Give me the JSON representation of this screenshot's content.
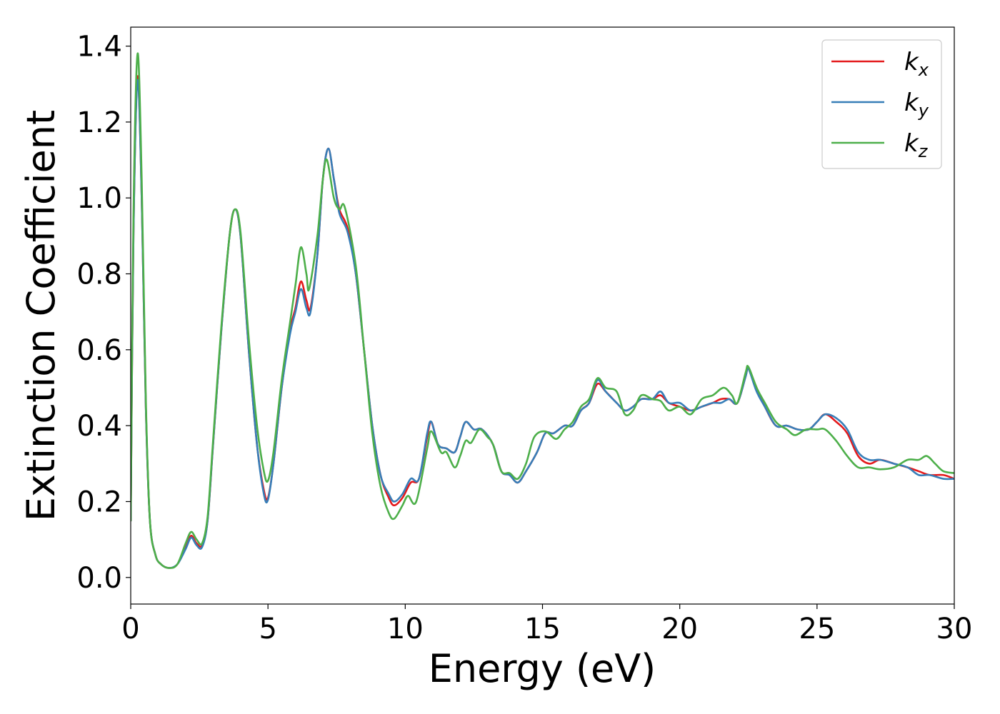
{
  "chart_data": {
    "type": "line",
    "xlabel": "Energy (eV)",
    "ylabel": "Extinction Coefficient",
    "xlim": [
      0,
      30
    ],
    "ylim": [
      -0.07,
      1.45
    ],
    "xticks": [
      0,
      5,
      10,
      15,
      20,
      25,
      30
    ],
    "xtick_labels": [
      "0",
      "5",
      "10",
      "15",
      "20",
      "25",
      "30"
    ],
    "yticks": [
      0.0,
      0.2,
      0.4,
      0.6,
      0.8,
      1.0,
      1.2,
      1.4
    ],
    "ytick_labels": [
      "0.0",
      "0.2",
      "0.4",
      "0.6",
      "0.8",
      "1.0",
      "1.2",
      "1.4"
    ],
    "grid": false,
    "legend_position": "top-right",
    "series": [
      {
        "name": "k_x",
        "label_base": "k",
        "label_sub": "x",
        "color": "#e41a1c",
        "points": [
          [
            0.0,
            0.15
          ],
          [
            0.1,
            0.9
          ],
          [
            0.25,
            1.32
          ],
          [
            0.4,
            1.0
          ],
          [
            0.55,
            0.45
          ],
          [
            0.7,
            0.15
          ],
          [
            0.9,
            0.06
          ],
          [
            1.1,
            0.035
          ],
          [
            1.4,
            0.025
          ],
          [
            1.7,
            0.035
          ],
          [
            2.0,
            0.08
          ],
          [
            2.2,
            0.11
          ],
          [
            2.4,
            0.09
          ],
          [
            2.6,
            0.085
          ],
          [
            2.8,
            0.15
          ],
          [
            3.0,
            0.35
          ],
          [
            3.3,
            0.65
          ],
          [
            3.6,
            0.9
          ],
          [
            3.8,
            0.97
          ],
          [
            4.0,
            0.9
          ],
          [
            4.3,
            0.6
          ],
          [
            4.6,
            0.35
          ],
          [
            4.85,
            0.23
          ],
          [
            5.0,
            0.21
          ],
          [
            5.2,
            0.3
          ],
          [
            5.5,
            0.5
          ],
          [
            5.8,
            0.65
          ],
          [
            6.0,
            0.71
          ],
          [
            6.2,
            0.78
          ],
          [
            6.4,
            0.73
          ],
          [
            6.55,
            0.71
          ],
          [
            6.8,
            0.85
          ],
          [
            7.0,
            1.05
          ],
          [
            7.2,
            1.13
          ],
          [
            7.4,
            1.05
          ],
          [
            7.6,
            0.97
          ],
          [
            7.9,
            0.92
          ],
          [
            8.2,
            0.8
          ],
          [
            8.5,
            0.6
          ],
          [
            8.8,
            0.4
          ],
          [
            9.1,
            0.27
          ],
          [
            9.4,
            0.21
          ],
          [
            9.6,
            0.19
          ],
          [
            9.9,
            0.21
          ],
          [
            10.2,
            0.25
          ],
          [
            10.5,
            0.26
          ],
          [
            10.8,
            0.37
          ],
          [
            10.95,
            0.41
          ],
          [
            11.2,
            0.35
          ],
          [
            11.5,
            0.34
          ],
          [
            11.8,
            0.33
          ],
          [
            12.0,
            0.37
          ],
          [
            12.2,
            0.41
          ],
          [
            12.5,
            0.39
          ],
          [
            12.8,
            0.39
          ],
          [
            13.2,
            0.35
          ],
          [
            13.5,
            0.28
          ],
          [
            13.8,
            0.27
          ],
          [
            14.1,
            0.25
          ],
          [
            14.4,
            0.28
          ],
          [
            14.8,
            0.33
          ],
          [
            15.1,
            0.38
          ],
          [
            15.4,
            0.38
          ],
          [
            15.8,
            0.4
          ],
          [
            16.1,
            0.4
          ],
          [
            16.4,
            0.44
          ],
          [
            16.7,
            0.46
          ],
          [
            17.0,
            0.51
          ],
          [
            17.3,
            0.49
          ],
          [
            17.7,
            0.46
          ],
          [
            18.0,
            0.44
          ],
          [
            18.3,
            0.45
          ],
          [
            18.6,
            0.47
          ],
          [
            19.0,
            0.47
          ],
          [
            19.3,
            0.48
          ],
          [
            19.6,
            0.46
          ],
          [
            20.0,
            0.45
          ],
          [
            20.4,
            0.44
          ],
          [
            20.8,
            0.45
          ],
          [
            21.2,
            0.46
          ],
          [
            21.5,
            0.47
          ],
          [
            21.8,
            0.47
          ],
          [
            22.1,
            0.46
          ],
          [
            22.4,
            0.53
          ],
          [
            22.5,
            0.55
          ],
          [
            22.8,
            0.5
          ],
          [
            23.1,
            0.45
          ],
          [
            23.5,
            0.4
          ],
          [
            23.9,
            0.4
          ],
          [
            24.3,
            0.39
          ],
          [
            24.7,
            0.39
          ],
          [
            25.0,
            0.41
          ],
          [
            25.3,
            0.43
          ],
          [
            25.7,
            0.41
          ],
          [
            26.1,
            0.38
          ],
          [
            26.5,
            0.32
          ],
          [
            26.9,
            0.3
          ],
          [
            27.3,
            0.31
          ],
          [
            27.8,
            0.3
          ],
          [
            28.3,
            0.29
          ],
          [
            28.7,
            0.28
          ],
          [
            29.1,
            0.27
          ],
          [
            29.6,
            0.27
          ],
          [
            30.0,
            0.26
          ]
        ]
      },
      {
        "name": "k_y",
        "label_base": "k",
        "label_sub": "y",
        "color": "#377eb8",
        "points": [
          [
            0.0,
            0.15
          ],
          [
            0.1,
            0.9
          ],
          [
            0.25,
            1.31
          ],
          [
            0.4,
            1.0
          ],
          [
            0.55,
            0.45
          ],
          [
            0.7,
            0.15
          ],
          [
            0.9,
            0.06
          ],
          [
            1.1,
            0.035
          ],
          [
            1.4,
            0.025
          ],
          [
            1.7,
            0.035
          ],
          [
            2.0,
            0.075
          ],
          [
            2.2,
            0.105
          ],
          [
            2.4,
            0.085
          ],
          [
            2.6,
            0.08
          ],
          [
            2.8,
            0.15
          ],
          [
            3.0,
            0.35
          ],
          [
            3.3,
            0.65
          ],
          [
            3.6,
            0.9
          ],
          [
            3.8,
            0.97
          ],
          [
            4.0,
            0.9
          ],
          [
            4.3,
            0.6
          ],
          [
            4.6,
            0.35
          ],
          [
            4.85,
            0.22
          ],
          [
            5.0,
            0.205
          ],
          [
            5.2,
            0.3
          ],
          [
            5.5,
            0.5
          ],
          [
            5.8,
            0.64
          ],
          [
            6.0,
            0.7
          ],
          [
            6.2,
            0.76
          ],
          [
            6.4,
            0.71
          ],
          [
            6.55,
            0.7
          ],
          [
            6.8,
            0.85
          ],
          [
            7.0,
            1.05
          ],
          [
            7.2,
            1.13
          ],
          [
            7.4,
            1.05
          ],
          [
            7.6,
            0.96
          ],
          [
            7.9,
            0.91
          ],
          [
            8.2,
            0.8
          ],
          [
            8.5,
            0.6
          ],
          [
            8.8,
            0.4
          ],
          [
            9.1,
            0.27
          ],
          [
            9.4,
            0.22
          ],
          [
            9.6,
            0.2
          ],
          [
            9.9,
            0.22
          ],
          [
            10.2,
            0.26
          ],
          [
            10.5,
            0.26
          ],
          [
            10.8,
            0.38
          ],
          [
            10.95,
            0.41
          ],
          [
            11.2,
            0.35
          ],
          [
            11.5,
            0.34
          ],
          [
            11.8,
            0.33
          ],
          [
            12.0,
            0.37
          ],
          [
            12.2,
            0.41
          ],
          [
            12.5,
            0.39
          ],
          [
            12.8,
            0.39
          ],
          [
            13.2,
            0.35
          ],
          [
            13.5,
            0.28
          ],
          [
            13.8,
            0.27
          ],
          [
            14.1,
            0.25
          ],
          [
            14.4,
            0.28
          ],
          [
            14.8,
            0.33
          ],
          [
            15.1,
            0.38
          ],
          [
            15.4,
            0.38
          ],
          [
            15.8,
            0.4
          ],
          [
            16.1,
            0.4
          ],
          [
            16.4,
            0.44
          ],
          [
            16.7,
            0.46
          ],
          [
            17.0,
            0.52
          ],
          [
            17.3,
            0.49
          ],
          [
            17.7,
            0.46
          ],
          [
            18.0,
            0.44
          ],
          [
            18.3,
            0.45
          ],
          [
            18.6,
            0.47
          ],
          [
            19.0,
            0.47
          ],
          [
            19.3,
            0.49
          ],
          [
            19.6,
            0.46
          ],
          [
            20.0,
            0.46
          ],
          [
            20.4,
            0.44
          ],
          [
            20.8,
            0.45
          ],
          [
            21.2,
            0.46
          ],
          [
            21.5,
            0.46
          ],
          [
            21.8,
            0.47
          ],
          [
            22.1,
            0.46
          ],
          [
            22.4,
            0.53
          ],
          [
            22.5,
            0.55
          ],
          [
            22.8,
            0.49
          ],
          [
            23.1,
            0.45
          ],
          [
            23.5,
            0.4
          ],
          [
            23.9,
            0.4
          ],
          [
            24.3,
            0.39
          ],
          [
            24.7,
            0.39
          ],
          [
            25.0,
            0.41
          ],
          [
            25.3,
            0.43
          ],
          [
            25.7,
            0.42
          ],
          [
            26.1,
            0.39
          ],
          [
            26.5,
            0.33
          ],
          [
            26.9,
            0.31
          ],
          [
            27.3,
            0.31
          ],
          [
            27.8,
            0.3
          ],
          [
            28.3,
            0.29
          ],
          [
            28.7,
            0.27
          ],
          [
            29.1,
            0.27
          ],
          [
            29.6,
            0.26
          ],
          [
            30.0,
            0.26
          ]
        ]
      },
      {
        "name": "k_z",
        "label_base": "k",
        "label_sub": "z",
        "color": "#4daf4a",
        "points": [
          [
            0.0,
            0.15
          ],
          [
            0.1,
            0.95
          ],
          [
            0.25,
            1.38
          ],
          [
            0.4,
            1.05
          ],
          [
            0.55,
            0.47
          ],
          [
            0.7,
            0.15
          ],
          [
            0.9,
            0.06
          ],
          [
            1.1,
            0.035
          ],
          [
            1.4,
            0.025
          ],
          [
            1.7,
            0.035
          ],
          [
            2.0,
            0.09
          ],
          [
            2.2,
            0.12
          ],
          [
            2.4,
            0.1
          ],
          [
            2.6,
            0.09
          ],
          [
            2.8,
            0.16
          ],
          [
            3.0,
            0.36
          ],
          [
            3.3,
            0.66
          ],
          [
            3.6,
            0.9
          ],
          [
            3.8,
            0.97
          ],
          [
            4.0,
            0.91
          ],
          [
            4.3,
            0.63
          ],
          [
            4.6,
            0.4
          ],
          [
            4.85,
            0.28
          ],
          [
            5.0,
            0.255
          ],
          [
            5.2,
            0.33
          ],
          [
            5.5,
            0.52
          ],
          [
            5.8,
            0.67
          ],
          [
            6.0,
            0.77
          ],
          [
            6.2,
            0.87
          ],
          [
            6.4,
            0.8
          ],
          [
            6.5,
            0.76
          ],
          [
            6.8,
            0.9
          ],
          [
            7.0,
            1.05
          ],
          [
            7.15,
            1.1
          ],
          [
            7.4,
            1.0
          ],
          [
            7.6,
            0.97
          ],
          [
            7.8,
            0.975
          ],
          [
            8.2,
            0.82
          ],
          [
            8.5,
            0.6
          ],
          [
            8.8,
            0.38
          ],
          [
            9.1,
            0.24
          ],
          [
            9.4,
            0.17
          ],
          [
            9.6,
            0.155
          ],
          [
            9.9,
            0.19
          ],
          [
            10.1,
            0.215
          ],
          [
            10.4,
            0.2
          ],
          [
            10.8,
            0.34
          ],
          [
            10.95,
            0.385
          ],
          [
            11.3,
            0.33
          ],
          [
            11.5,
            0.33
          ],
          [
            11.8,
            0.29
          ],
          [
            12.0,
            0.32
          ],
          [
            12.2,
            0.36
          ],
          [
            12.4,
            0.355
          ],
          [
            12.7,
            0.39
          ],
          [
            13.0,
            0.37
          ],
          [
            13.2,
            0.35
          ],
          [
            13.5,
            0.28
          ],
          [
            13.8,
            0.275
          ],
          [
            14.1,
            0.26
          ],
          [
            14.4,
            0.3
          ],
          [
            14.7,
            0.37
          ],
          [
            15.1,
            0.385
          ],
          [
            15.5,
            0.365
          ],
          [
            15.8,
            0.39
          ],
          [
            16.1,
            0.41
          ],
          [
            16.4,
            0.45
          ],
          [
            16.7,
            0.47
          ],
          [
            17.0,
            0.525
          ],
          [
            17.3,
            0.5
          ],
          [
            17.7,
            0.49
          ],
          [
            18.0,
            0.43
          ],
          [
            18.3,
            0.44
          ],
          [
            18.6,
            0.48
          ],
          [
            19.0,
            0.47
          ],
          [
            19.3,
            0.465
          ],
          [
            19.6,
            0.44
          ],
          [
            20.0,
            0.45
          ],
          [
            20.4,
            0.43
          ],
          [
            20.8,
            0.47
          ],
          [
            21.2,
            0.48
          ],
          [
            21.6,
            0.5
          ],
          [
            21.9,
            0.48
          ],
          [
            22.1,
            0.46
          ],
          [
            22.4,
            0.54
          ],
          [
            22.5,
            0.555
          ],
          [
            22.8,
            0.5
          ],
          [
            23.1,
            0.46
          ],
          [
            23.5,
            0.41
          ],
          [
            23.9,
            0.39
          ],
          [
            24.2,
            0.375
          ],
          [
            24.6,
            0.39
          ],
          [
            25.0,
            0.39
          ],
          [
            25.3,
            0.39
          ],
          [
            25.7,
            0.36
          ],
          [
            26.1,
            0.32
          ],
          [
            26.5,
            0.29
          ],
          [
            26.9,
            0.29
          ],
          [
            27.3,
            0.285
          ],
          [
            27.8,
            0.29
          ],
          [
            28.3,
            0.31
          ],
          [
            28.7,
            0.31
          ],
          [
            29.0,
            0.32
          ],
          [
            29.3,
            0.3
          ],
          [
            29.6,
            0.28
          ],
          [
            30.0,
            0.275
          ]
        ]
      }
    ]
  }
}
